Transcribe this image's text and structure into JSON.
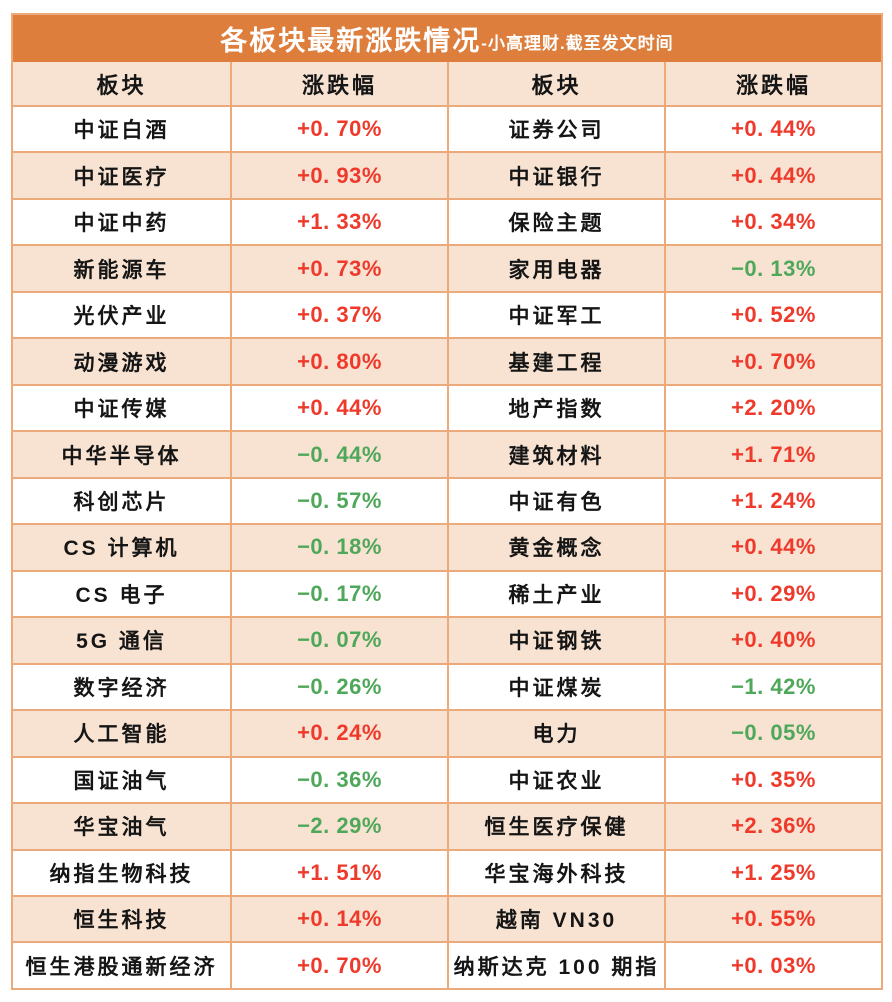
{
  "title": "各板块最新涨跌情况",
  "subtitle": "-小高理财.截至发文时间",
  "colors": {
    "header_bg": "#dd7e3d",
    "header_text": "#ffffff",
    "row_peach_bg": "#f8e3d2",
    "row_white_bg": "#ffffff",
    "grid_border": "#ecaa7b",
    "positive_text": "#ee392b",
    "negative_text": "#4fa75a",
    "sector_text": "#151515"
  },
  "chart_data": {
    "type": "table",
    "title": "各板块最新涨跌情况-小高理财.截至发文时间",
    "columns": [
      "板块",
      "涨跌幅",
      "板块",
      "涨跌幅"
    ],
    "rows": [
      {
        "s1": "中证白酒",
        "c1": "+0. 70%",
        "v1": 0.7,
        "d1": "up",
        "s2": "证券公司",
        "c2": "+0. 44%",
        "v2": 0.44,
        "d2": "up"
      },
      {
        "s1": "中证医疗",
        "c1": "+0. 93%",
        "v1": 0.93,
        "d1": "up",
        "s2": "中证银行",
        "c2": "+0. 44%",
        "v2": 0.44,
        "d2": "up"
      },
      {
        "s1": "中证中药",
        "c1": "+1. 33%",
        "v1": 1.33,
        "d1": "up",
        "s2": "保险主题",
        "c2": "+0. 34%",
        "v2": 0.34,
        "d2": "up"
      },
      {
        "s1": "新能源车",
        "c1": "+0. 73%",
        "v1": 0.73,
        "d1": "up",
        "s2": "家用电器",
        "c2": "−0. 13%",
        "v2": -0.13,
        "d2": "down"
      },
      {
        "s1": "光伏产业",
        "c1": "+0. 37%",
        "v1": 0.37,
        "d1": "up",
        "s2": "中证军工",
        "c2": "+0. 52%",
        "v2": 0.52,
        "d2": "up"
      },
      {
        "s1": "动漫游戏",
        "c1": "+0. 80%",
        "v1": 0.8,
        "d1": "up",
        "s2": "基建工程",
        "c2": "+0. 70%",
        "v2": 0.7,
        "d2": "up"
      },
      {
        "s1": "中证传媒",
        "c1": "+0. 44%",
        "v1": 0.44,
        "d1": "up",
        "s2": "地产指数",
        "c2": "+2. 20%",
        "v2": 2.2,
        "d2": "up"
      },
      {
        "s1": "中华半导体",
        "c1": "−0. 44%",
        "v1": -0.44,
        "d1": "down",
        "s2": "建筑材料",
        "c2": "+1. 71%",
        "v2": 1.71,
        "d2": "up"
      },
      {
        "s1": "科创芯片",
        "c1": "−0. 57%",
        "v1": -0.57,
        "d1": "down",
        "s2": "中证有色",
        "c2": "+1. 24%",
        "v2": 1.24,
        "d2": "up"
      },
      {
        "s1": "CS 计算机",
        "c1": "−0. 18%",
        "v1": -0.18,
        "d1": "down",
        "s2": "黄金概念",
        "c2": "+0. 44%",
        "v2": 0.44,
        "d2": "up"
      },
      {
        "s1": "CS 电子",
        "c1": "−0. 17%",
        "v1": -0.17,
        "d1": "down",
        "s2": "稀土产业",
        "c2": "+0. 29%",
        "v2": 0.29,
        "d2": "up"
      },
      {
        "s1": "5G 通信",
        "c1": "−0. 07%",
        "v1": -0.07,
        "d1": "down",
        "s2": "中证钢铁",
        "c2": "+0. 40%",
        "v2": 0.4,
        "d2": "up"
      },
      {
        "s1": "数字经济",
        "c1": "−0. 26%",
        "v1": -0.26,
        "d1": "down",
        "s2": "中证煤炭",
        "c2": "−1. 42%",
        "v2": -1.42,
        "d2": "down"
      },
      {
        "s1": "人工智能",
        "c1": "+0. 24%",
        "v1": 0.24,
        "d1": "up",
        "s2": "电力",
        "c2": "−0. 05%",
        "v2": -0.05,
        "d2": "down"
      },
      {
        "s1": "国证油气",
        "c1": "−0. 36%",
        "v1": -0.36,
        "d1": "down",
        "s2": "中证农业",
        "c2": "+0. 35%",
        "v2": 0.35,
        "d2": "up"
      },
      {
        "s1": "华宝油气",
        "c1": "−2. 29%",
        "v1": -2.29,
        "d1": "down",
        "s2": "恒生医疗保健",
        "c2": "+2. 36%",
        "v2": 2.36,
        "d2": "up"
      },
      {
        "s1": "纳指生物科技",
        "c1": "+1. 51%",
        "v1": 1.51,
        "d1": "up",
        "s2": "华宝海外科技",
        "c2": "+1. 25%",
        "v2": 1.25,
        "d2": "up"
      },
      {
        "s1": "恒生科技",
        "c1": "+0. 14%",
        "v1": 0.14,
        "d1": "up",
        "s2": "越南 VN30",
        "c2": "+0. 55%",
        "v2": 0.55,
        "d2": "up"
      },
      {
        "s1": "恒生港股通新经济",
        "c1": "+0. 70%",
        "v1": 0.7,
        "d1": "up",
        "s2": "纳斯达克 100 期指",
        "c2": "+0. 03%",
        "v2": 0.03,
        "d2": "up"
      }
    ]
  }
}
